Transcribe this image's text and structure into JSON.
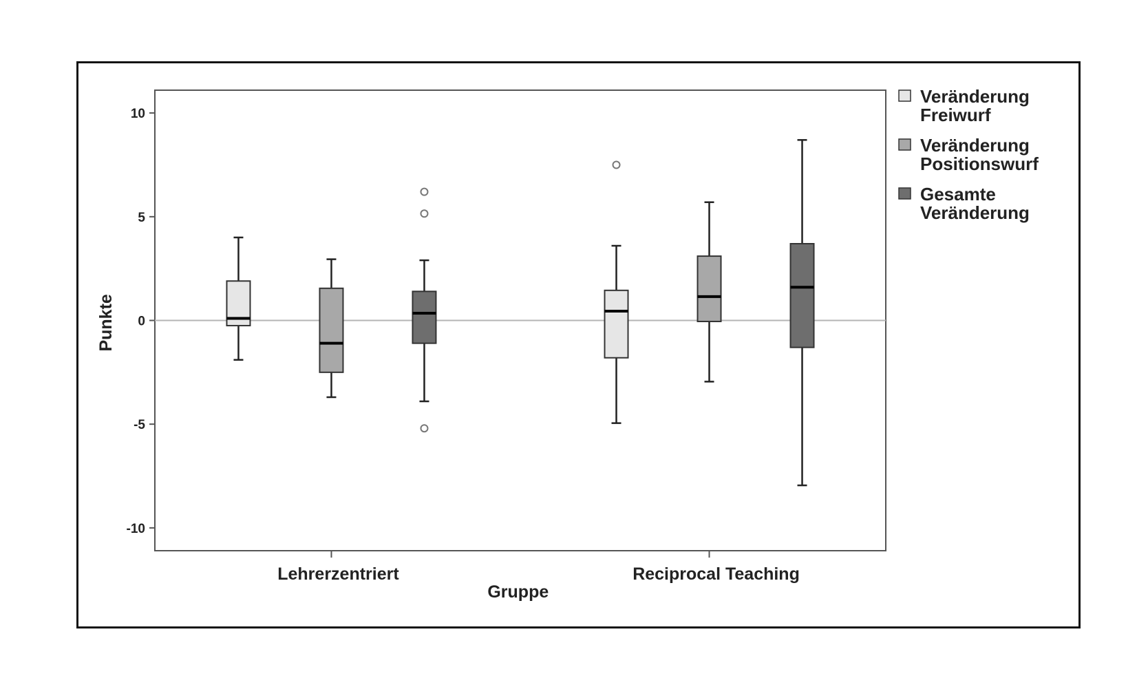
{
  "chart_data": {
    "type": "boxplot",
    "ylabel": "Punkte",
    "xlabel": "Gruppe",
    "ylim": [
      -11.1,
      11.1
    ],
    "yticks": [
      {
        "value": 10,
        "label": "10"
      },
      {
        "value": 5,
        "label": "5"
      },
      {
        "value": 0,
        "label": "0"
      },
      {
        "value": -5,
        "label": "-5"
      },
      {
        "value": -10,
        "label": "-10"
      }
    ],
    "reference_line": 0,
    "categories": [
      "Lehrerzentriert",
      "Reciprocal Teaching"
    ],
    "legend_position": "right",
    "series": [
      {
        "name_lines": [
          "Veränderung",
          "Freiwurf"
        ],
        "color": "#e6e6e6",
        "boxes": [
          {
            "whisker_low": -1.9,
            "q1": -0.25,
            "median": 0.1,
            "q3": 1.9,
            "whisker_high": 4.0,
            "outliers": []
          },
          {
            "whisker_low": -4.95,
            "q1": -1.8,
            "median": 0.45,
            "q3": 1.45,
            "whisker_high": 3.6,
            "outliers": [
              7.5
            ]
          }
        ]
      },
      {
        "name_lines": [
          "Veränderung",
          "Positionswurf"
        ],
        "color": "#a8a8a8",
        "boxes": [
          {
            "whisker_low": -3.7,
            "q1": -2.5,
            "median": -1.1,
            "q3": 1.55,
            "whisker_high": 2.95,
            "outliers": []
          },
          {
            "whisker_low": -2.95,
            "q1": -0.05,
            "median": 1.15,
            "q3": 3.1,
            "whisker_high": 5.7,
            "outliers": []
          }
        ]
      },
      {
        "name_lines": [
          "Gesamte",
          "Veränderung"
        ],
        "color": "#6e6e6e",
        "boxes": [
          {
            "whisker_low": -3.9,
            "q1": -1.1,
            "median": 0.35,
            "q3": 1.4,
            "whisker_high": 2.9,
            "outliers": [
              6.2,
              5.15,
              -5.2
            ]
          },
          {
            "whisker_low": -7.95,
            "q1": -1.3,
            "median": 1.6,
            "q3": 3.7,
            "whisker_high": 8.7,
            "outliers": []
          }
        ]
      }
    ]
  }
}
